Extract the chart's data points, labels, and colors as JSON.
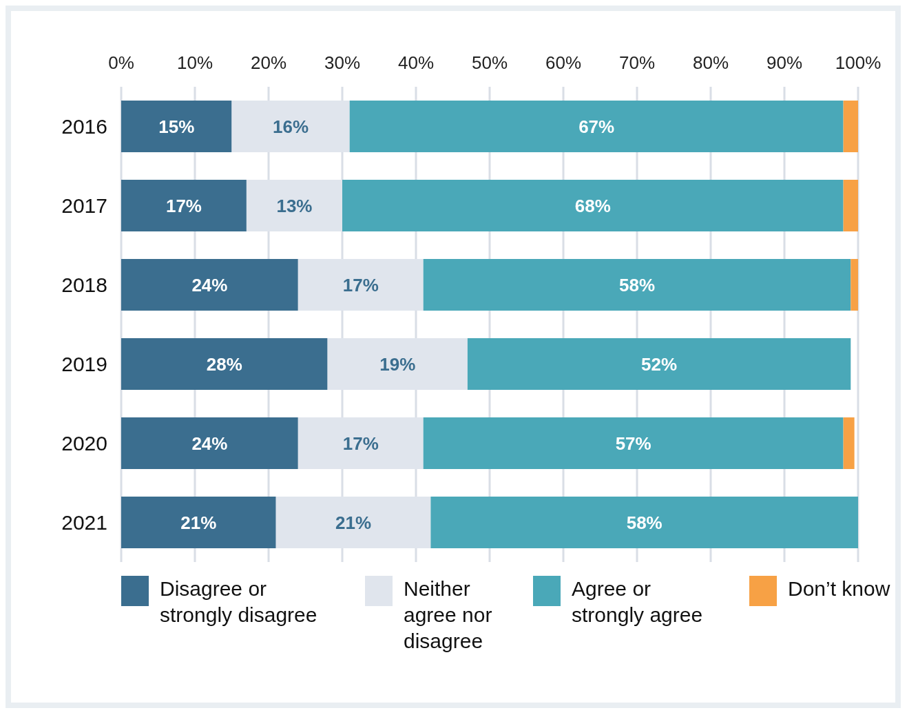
{
  "chart_data": {
    "type": "bar",
    "orientation": "horizontal",
    "stacked": true,
    "categories": [
      "2016",
      "2017",
      "2018",
      "2019",
      "2020",
      "2021"
    ],
    "series": [
      {
        "name": "Disagree or strongly disagree",
        "color": "#3b6e8f",
        "values": [
          15,
          17,
          24,
          28,
          24,
          21
        ],
        "value_labels": [
          "15%",
          "17%",
          "24%",
          "28%",
          "24%",
          "21%"
        ]
      },
      {
        "name": "Neither agree nor disagree",
        "color": "#e0e5ed",
        "values": [
          16,
          13,
          17,
          19,
          17,
          21
        ],
        "value_labels": [
          "16%",
          "13%",
          "17%",
          "19%",
          "17%",
          "21%"
        ]
      },
      {
        "name": "Agree or strongly agree",
        "color": "#4aa8b8",
        "values": [
          67,
          68,
          58,
          52,
          57,
          58
        ],
        "value_labels": [
          "67%",
          "68%",
          "58%",
          "52%",
          "57%",
          "58%"
        ]
      },
      {
        "name": "Don’t know",
        "color": "#f7a145",
        "values": [
          2,
          2,
          1,
          0,
          1.5,
          0
        ]
      }
    ],
    "xlim": [
      0,
      100
    ],
    "xticks": [
      {
        "value": 0,
        "label": "0%"
      },
      {
        "value": 10,
        "label": "10%"
      },
      {
        "value": 20,
        "label": "20%"
      },
      {
        "value": 30,
        "label": "30%"
      },
      {
        "value": 40,
        "label": "40%"
      },
      {
        "value": 50,
        "label": "50%"
      },
      {
        "value": 60,
        "label": "60%"
      },
      {
        "value": 70,
        "label": "70%"
      },
      {
        "value": 80,
        "label": "80%"
      },
      {
        "value": 90,
        "label": "90%"
      },
      {
        "value": 100,
        "label": "100%"
      }
    ],
    "grid": "x",
    "legend": "bottom"
  }
}
